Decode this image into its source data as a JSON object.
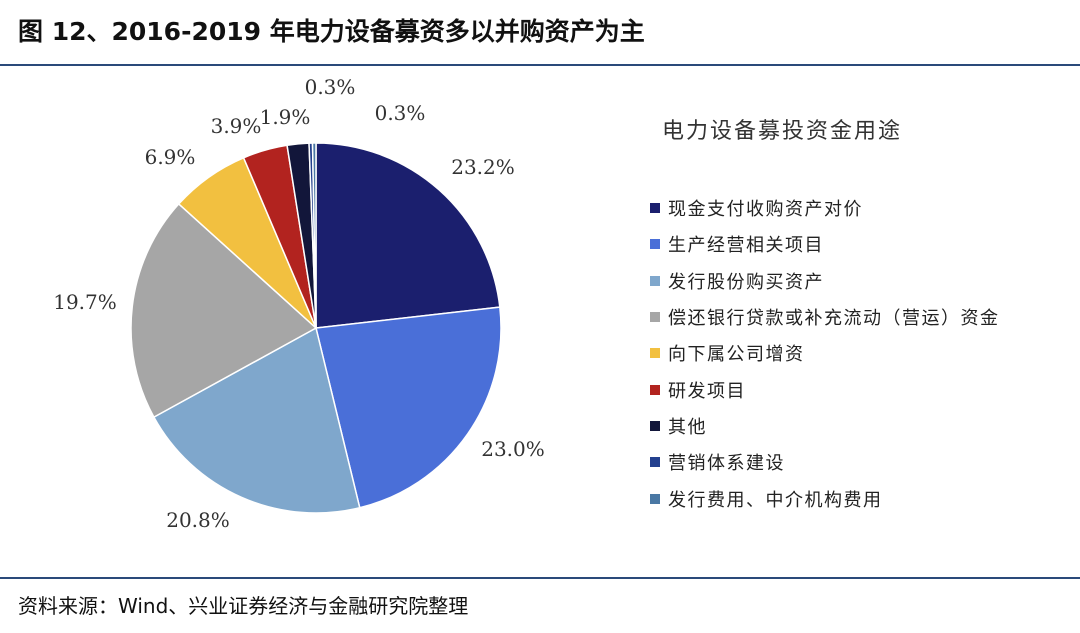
{
  "header": {
    "title": "图 12、2016-2019 年电力设备募资多以并购资产为主"
  },
  "footer": {
    "source": "资料来源：Wind、兴业证券经济与金融研究院整理"
  },
  "chart_data": {
    "type": "pie",
    "legend_title": "电力设备募投资金用途",
    "legend_position": "right",
    "categories": [
      "现金支付收购资产对价",
      "生产经营相关项目",
      "发行股份购买资产",
      "偿还银行贷款或补充流动（营运）资金",
      "向下属公司增资",
      "研发项目",
      "其他",
      "营销体系建设",
      "发行费用、中介机构费用"
    ],
    "values": [
      23.2,
      23.0,
      20.8,
      19.7,
      6.9,
      3.9,
      1.9,
      0.3,
      0.3
    ],
    "labels": [
      "23.2%",
      "23.0%",
      "20.8%",
      "19.7%",
      "6.9%",
      "3.9%",
      "1.9%",
      "0.3%",
      "0.3%"
    ],
    "colors": [
      "#1b1f6e",
      "#4a6fd8",
      "#7fa7cc",
      "#a6a6a6",
      "#f2c040",
      "#b2231f",
      "#12163a",
      "#23408e",
      "#4a78a4"
    ]
  }
}
